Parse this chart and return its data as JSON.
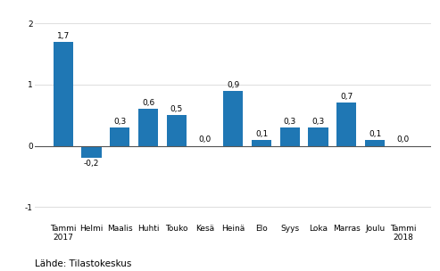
{
  "categories": [
    "Tammi\n2017",
    "Helmi",
    "Maalis",
    "Huhti",
    "Touko",
    "Kesä",
    "Heinä",
    "Elo",
    "Syys",
    "Loka",
    "Marras",
    "Joulu",
    "Tammi\n2018"
  ],
  "values": [
    1.7,
    -0.2,
    0.3,
    0.6,
    0.5,
    0.0,
    0.9,
    0.1,
    0.3,
    0.3,
    0.7,
    0.1,
    0.0
  ],
  "bar_color": "#1f77b4",
  "ylim": [
    -1.25,
    2.25
  ],
  "yticks": [
    -1,
    0,
    1,
    2
  ],
  "source_text": "Lähde: Tilastokeskus",
  "background_color": "#ffffff",
  "grid_color": "#e0e0e0",
  "label_fontsize": 6.5,
  "tick_fontsize": 6.5,
  "source_fontsize": 7.5,
  "bar_width": 0.7
}
